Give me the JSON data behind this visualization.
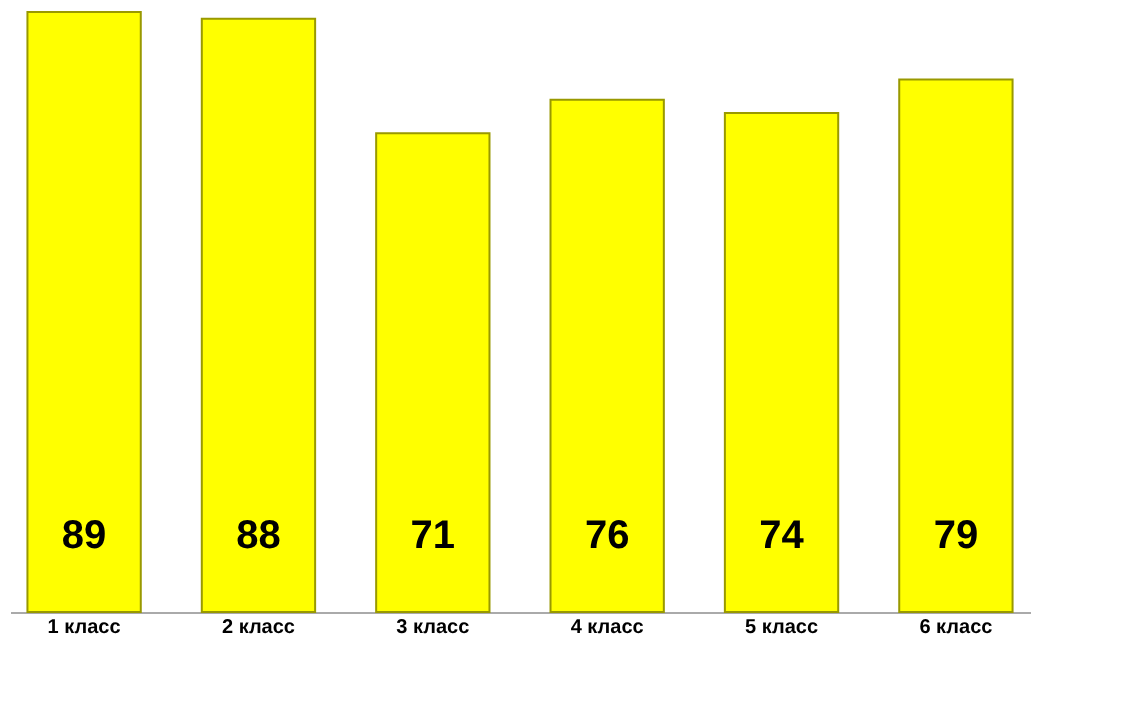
{
  "chart_data": {
    "type": "bar",
    "categories": [
      "1 класс",
      "2 класс",
      "3 класс",
      "4 класс",
      "5 класс",
      "6 класс"
    ],
    "values": [
      89,
      88,
      71,
      76,
      74,
      79
    ],
    "color": "#ffff00",
    "data_labels": true
  }
}
